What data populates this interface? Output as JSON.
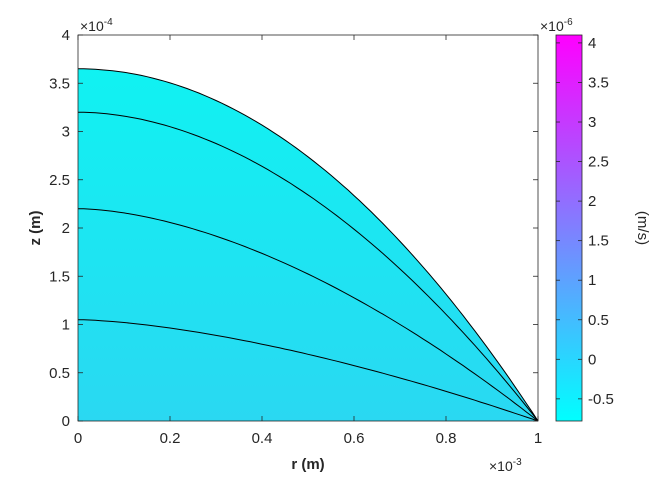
{
  "chart_data": {
    "type": "contour",
    "xlabel": "r (m)",
    "ylabel": "z (m)",
    "x_multiplier_base": "×10",
    "x_multiplier_exp": "-3",
    "y_multiplier_base": "×10",
    "y_multiplier_exp": "-4",
    "xlim": [
      0,
      1
    ],
    "ylim": [
      0,
      4
    ],
    "xticks": [
      "0",
      "0.2",
      "0.4",
      "0.6",
      "0.8",
      "1"
    ],
    "yticks": [
      "0",
      "0.5",
      "1",
      "1.5",
      "2",
      "2.5",
      "3",
      "3.5",
      "4"
    ],
    "surface_height_at_center": 3.65,
    "contour_levels_z_at_r0": [
      3.2,
      2.2,
      1.05
    ],
    "colorbar": {
      "label": "(m/s)",
      "multiplier_base": "×10",
      "multiplier_exp": "-6",
      "range": [
        -0.78,
        4.1
      ],
      "ticks": [
        "-0.5",
        "0",
        "0.5",
        "1",
        "1.5",
        "2",
        "2.5",
        "3",
        "3.5",
        "4"
      ],
      "color_low": "#00ffff",
      "color_high": "#ff00ff"
    },
    "fill_color": "#28eaf0",
    "grid": false
  }
}
